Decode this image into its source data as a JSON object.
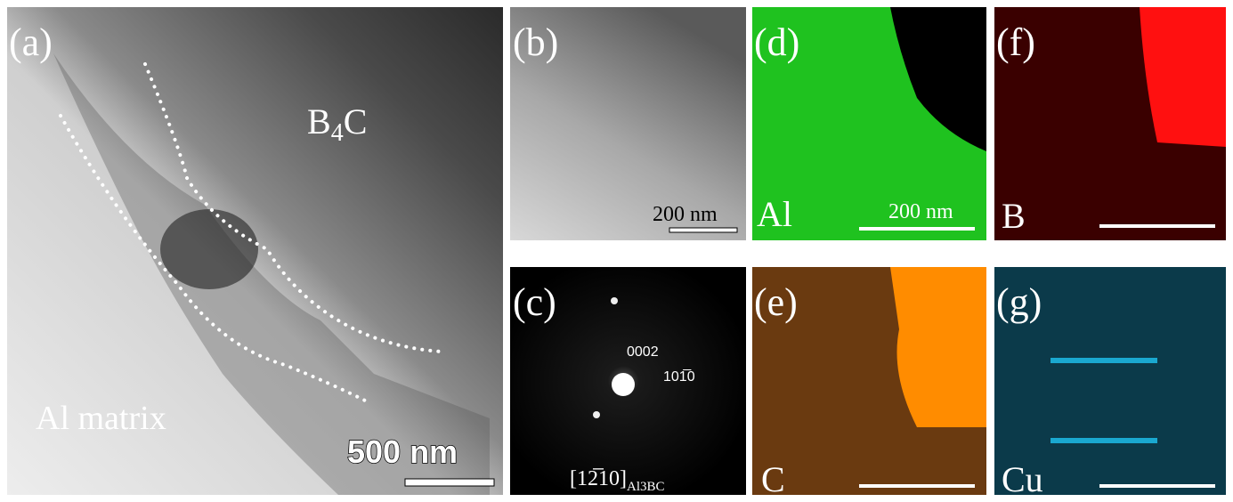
{
  "panels": {
    "a": {
      "label": "(a)",
      "phase_top": {
        "main": "B",
        "sub": "4",
        "tail": "C"
      },
      "phase_bottom": "Al matrix",
      "scale": "500 nm"
    },
    "b": {
      "label": "(b)",
      "scale": "200 nm"
    },
    "c": {
      "label": "(c)",
      "spot1": "0002",
      "spot2": "101̅0",
      "zone": {
        "main": "[12̅10]",
        "sub": "Al3BC"
      }
    },
    "d": {
      "label": "(d)",
      "element": "Al",
      "scale": "200 nm"
    },
    "e": {
      "label": "(e)",
      "element": "C"
    },
    "f": {
      "label": "(f)",
      "element": "B"
    },
    "g": {
      "label": "(g)",
      "element": "Cu"
    }
  }
}
